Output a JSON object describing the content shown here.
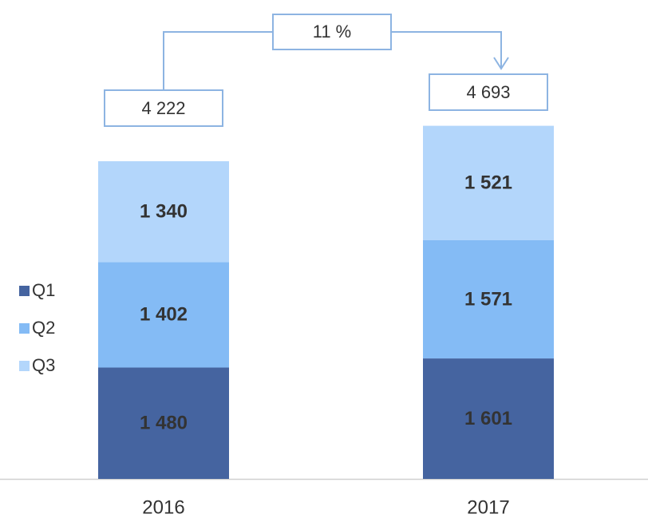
{
  "chart_data": {
    "type": "bar",
    "stacked": true,
    "categories": [
      "2016",
      "2017"
    ],
    "series": [
      {
        "name": "Q1",
        "color": "#4564a0",
        "values": [
          1480,
          1601
        ],
        "value_labels": [
          "1 480",
          "1 601"
        ]
      },
      {
        "name": "Q2",
        "color": "#84bbf5",
        "values": [
          1402,
          1571
        ],
        "value_labels": [
          "1 402",
          "1 571"
        ]
      },
      {
        "name": "Q3",
        "color": "#b3d6fb",
        "values": [
          1340,
          1521
        ],
        "value_labels": [
          "1 340",
          "1 521"
        ]
      }
    ],
    "totals": [
      4222,
      4693
    ],
    "total_labels": [
      "4 222",
      "4 693"
    ],
    "annotation": "11 %",
    "legend": "left"
  }
}
